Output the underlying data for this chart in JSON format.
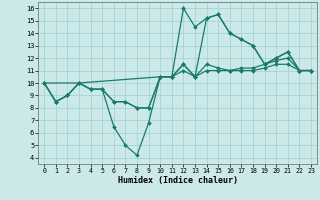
{
  "xlabel": "Humidex (Indice chaleur)",
  "xlim": [
    -0.5,
    23.5
  ],
  "ylim": [
    3.5,
    16.5
  ],
  "xticks": [
    0,
    1,
    2,
    3,
    4,
    5,
    6,
    7,
    8,
    9,
    10,
    11,
    12,
    13,
    14,
    15,
    16,
    17,
    18,
    19,
    20,
    21,
    22,
    23
  ],
  "yticks": [
    4,
    5,
    6,
    7,
    8,
    9,
    10,
    11,
    12,
    13,
    14,
    15,
    16
  ],
  "background_color": "#cce9e9",
  "grid_color": "#a8d4d4",
  "line_color": "#1a7a6e",
  "lines": [
    {
      "x": [
        0,
        1,
        2,
        3,
        4,
        5,
        6,
        7,
        8,
        9,
        10,
        11,
        12,
        13,
        14,
        15,
        16,
        17,
        18,
        19,
        20,
        21,
        22,
        23
      ],
      "y": [
        10,
        8.5,
        9,
        10,
        9.5,
        9.5,
        6.5,
        5.0,
        4.2,
        6.8,
        10.5,
        10.5,
        16.0,
        14.5,
        15.2,
        15.5,
        14.0,
        13.5,
        13.0,
        11.5,
        12.0,
        12.5,
        11.0,
        11.0
      ]
    },
    {
      "x": [
        0,
        3,
        10,
        11,
        12,
        13,
        14,
        15,
        16,
        17,
        18,
        19,
        20,
        21,
        22,
        23
      ],
      "y": [
        10,
        10,
        10.5,
        10.5,
        11.0,
        10.5,
        11.0,
        11.0,
        11.0,
        11.0,
        11.0,
        11.2,
        11.5,
        11.5,
        11.0,
        11.0
      ]
    },
    {
      "x": [
        0,
        1,
        2,
        3,
        4,
        5,
        6,
        7,
        8,
        9,
        10,
        11,
        12,
        13,
        14,
        15,
        16,
        17,
        18,
        19,
        20,
        21,
        22,
        23
      ],
      "y": [
        10,
        8.5,
        9,
        10,
        9.5,
        9.5,
        8.5,
        8.5,
        8.0,
        8.0,
        10.5,
        10.5,
        11.5,
        10.5,
        11.5,
        11.2,
        11.0,
        11.2,
        11.2,
        11.5,
        11.8,
        12.0,
        11.0,
        11.0
      ]
    },
    {
      "x": [
        0,
        1,
        2,
        3,
        4,
        5,
        6,
        7,
        8,
        9,
        10,
        11,
        12,
        13,
        14,
        15,
        16,
        17,
        18,
        19,
        20,
        21,
        22,
        23
      ],
      "y": [
        10,
        8.5,
        9,
        10,
        9.5,
        9.5,
        8.5,
        8.5,
        8.0,
        8.0,
        10.5,
        10.5,
        11.5,
        10.5,
        15.2,
        15.5,
        14.0,
        13.5,
        13.0,
        11.5,
        12.0,
        12.5,
        11.0,
        11.0
      ]
    }
  ]
}
